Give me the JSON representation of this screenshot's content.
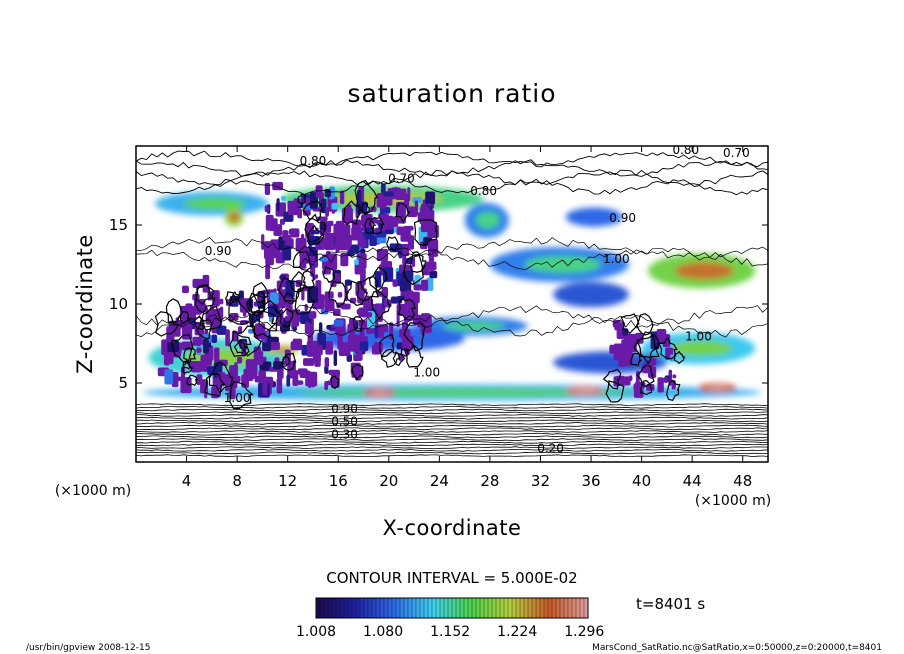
{
  "chart_data": {
    "type": "heatmap",
    "title": "saturation ratio",
    "xlabel": "X-coordinate",
    "ylabel": "Z-coordinate",
    "x_unit": "(×1000 m)",
    "z_unit": "(×1000 m)",
    "xlim": [
      0,
      50
    ],
    "ylim": [
      0,
      20
    ],
    "x_ticks": [
      4,
      8,
      12,
      16,
      20,
      24,
      28,
      32,
      36,
      40,
      44,
      48
    ],
    "y_ticks": [
      5,
      10,
      15
    ],
    "contour_interval_text": "CONTOUR INTERVAL = 5.000E-02",
    "colorbar": {
      "ticks": [
        "1.008",
        "1.080",
        "1.152",
        "1.224",
        "1.296"
      ],
      "range": [
        1.008,
        1.3
      ],
      "colors": [
        "#1a0a4a",
        "#2020a0",
        "#2e6ae8",
        "#3fd0f0",
        "#4cd34c",
        "#b4d040",
        "#c85a28",
        "#e0a0a0"
      ]
    },
    "contour_labels": [
      {
        "x": 14.0,
        "z": 18.8,
        "text": "0.80"
      },
      {
        "x": 21.0,
        "z": 17.7,
        "text": "0.70"
      },
      {
        "x": 27.5,
        "z": 16.9,
        "text": "0.80"
      },
      {
        "x": 43.5,
        "z": 19.5,
        "text": "0.80"
      },
      {
        "x": 47.5,
        "z": 19.3,
        "text": "0.70"
      },
      {
        "x": 38.5,
        "z": 15.2,
        "text": "0.90"
      },
      {
        "x": 6.5,
        "z": 13.1,
        "text": "0.90"
      },
      {
        "x": 38.0,
        "z": 12.6,
        "text": "1.00"
      },
      {
        "x": 44.5,
        "z": 7.7,
        "text": "1.00"
      },
      {
        "x": 23.0,
        "z": 5.4,
        "text": "1.00"
      },
      {
        "x": 8.0,
        "z": 3.8,
        "text": "1.00"
      },
      {
        "x": 16.5,
        "z": 3.1,
        "text": "0.90"
      },
      {
        "x": 16.5,
        "z": 2.3,
        "text": "0.50"
      },
      {
        "x": 16.5,
        "z": 1.5,
        "text": "0.30"
      },
      {
        "x": 32.8,
        "z": 0.6,
        "text": "0.20"
      }
    ],
    "regions_above_1": [
      {
        "x": 1.5,
        "z": 15.6,
        "w": 9.0,
        "h": 1.5,
        "v": 1.12
      },
      {
        "x": 11.5,
        "z": 15.8,
        "w": 16.0,
        "h": 1.7,
        "v": 1.16
      },
      {
        "x": 26.0,
        "z": 14.2,
        "w": 3.5,
        "h": 2.2,
        "v": 1.1
      },
      {
        "x": 34.0,
        "z": 14.9,
        "w": 4.5,
        "h": 1.2,
        "v": 1.09
      },
      {
        "x": 28.0,
        "z": 11.4,
        "w": 11.0,
        "h": 2.2,
        "v": 1.1
      },
      {
        "x": 40.5,
        "z": 11.0,
        "w": 8.5,
        "h": 2.2,
        "v": 1.19
      },
      {
        "x": 33.0,
        "z": 9.8,
        "w": 6.0,
        "h": 1.6,
        "v": 1.08
      },
      {
        "x": 22.0,
        "z": 8.0,
        "w": 9.0,
        "h": 1.2,
        "v": 1.1
      },
      {
        "x": 14.0,
        "z": 7.0,
        "w": 12.0,
        "h": 1.6,
        "v": 1.09
      },
      {
        "x": 1.0,
        "z": 5.4,
        "w": 11.0,
        "h": 2.4,
        "v": 1.14
      },
      {
        "x": 40.0,
        "z": 6.2,
        "w": 9.0,
        "h": 2.0,
        "v": 1.13
      },
      {
        "x": 33.0,
        "z": 5.6,
        "w": 9.0,
        "h": 1.4,
        "v": 1.08
      },
      {
        "x": 0.5,
        "z": 3.9,
        "w": 49.0,
        "h": 1.0,
        "v": 1.12
      },
      {
        "x": 34.0,
        "z": 4.2,
        "w": 3.0,
        "h": 0.6,
        "v": 1.28
      },
      {
        "x": 18.0,
        "z": 4.1,
        "w": 2.5,
        "h": 0.6,
        "v": 1.27
      },
      {
        "x": 44.5,
        "z": 4.4,
        "w": 3.0,
        "h": 0.6,
        "v": 1.26
      },
      {
        "x": 7.0,
        "z": 14.9,
        "w": 1.5,
        "h": 1.2,
        "v": 1.2
      },
      {
        "x": 10.0,
        "z": 6.8,
        "w": 3.0,
        "h": 0.6,
        "v": 1.21
      }
    ],
    "cloud_columns": [
      {
        "x": 11.0,
        "z0": 4.5,
        "z1": 17.5,
        "v": 1.02
      },
      {
        "x": 13.0,
        "z0": 5.0,
        "z1": 17.0,
        "v": 1.03
      },
      {
        "x": 15.0,
        "z0": 4.8,
        "z1": 17.5,
        "v": 1.02
      },
      {
        "x": 17.0,
        "z0": 5.5,
        "z1": 17.2,
        "v": 1.02
      },
      {
        "x": 18.8,
        "z0": 7.0,
        "z1": 16.5,
        "v": 1.04
      },
      {
        "x": 20.5,
        "z0": 6.5,
        "z1": 17.3,
        "v": 1.03
      },
      {
        "x": 22.5,
        "z0": 8.0,
        "z1": 16.8,
        "v": 1.02
      },
      {
        "x": 5.0,
        "z0": 4.0,
        "z1": 11.5,
        "v": 1.02
      },
      {
        "x": 7.0,
        "z0": 4.2,
        "z1": 10.5,
        "v": 1.03
      },
      {
        "x": 9.0,
        "z0": 4.8,
        "z1": 10.8,
        "v": 1.02
      },
      {
        "x": 3.0,
        "z0": 5.0,
        "z1": 9.5,
        "v": 1.02
      },
      {
        "x": 39.0,
        "z0": 4.2,
        "z1": 9.0,
        "v": 1.02
      },
      {
        "x": 41.5,
        "z0": 4.5,
        "z1": 8.0,
        "v": 1.03
      }
    ]
  },
  "time_label": "t=8401 s",
  "footer_left": "/usr/bin/gpview   2008-12-15",
  "footer_right": "MarsCond_SatRatio.nc@SatRatio,x=0:50000,z=0:20000,t=8401"
}
